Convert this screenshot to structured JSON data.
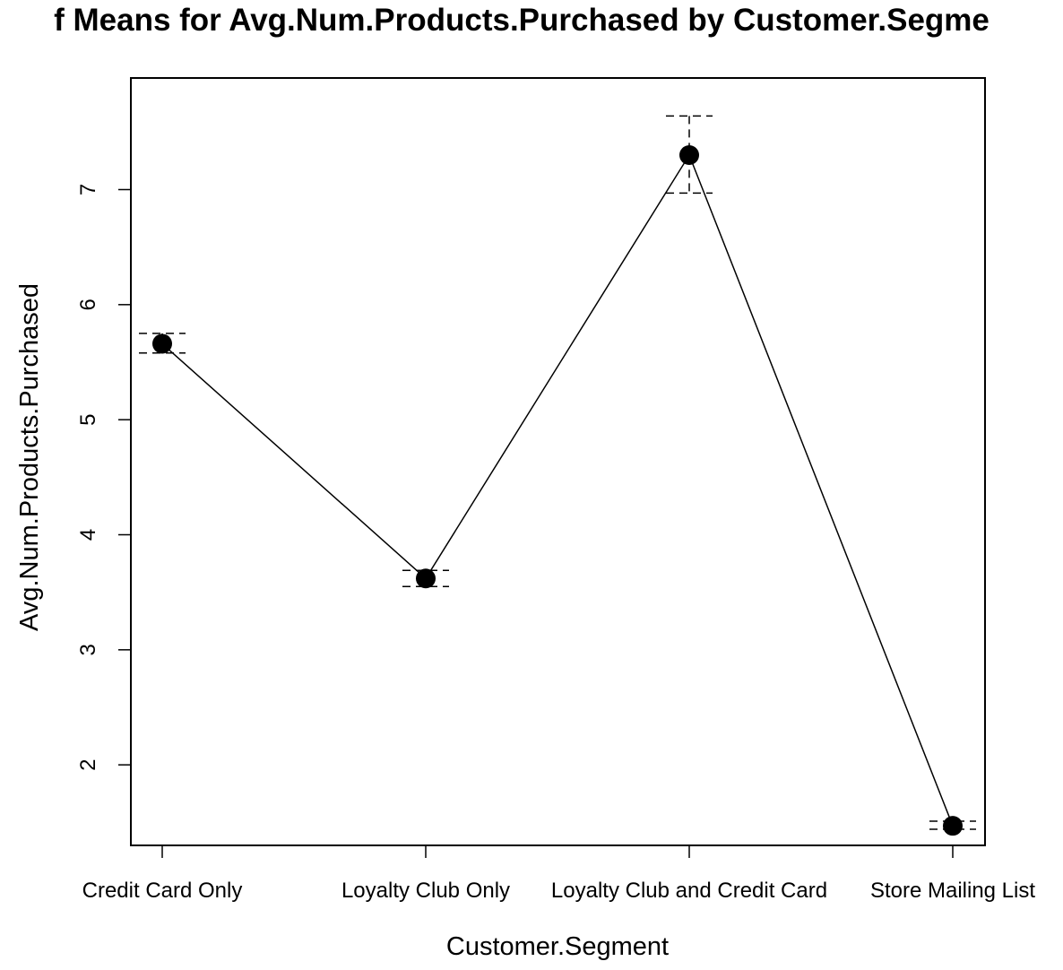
{
  "chart_data": {
    "type": "line",
    "title": "f Means for Avg.Num.Products.Purchased by Customer.Segme",
    "xlabel": "Customer.Segment",
    "ylabel": "Avg.Num.Products.Purchased",
    "categories": [
      "Credit Card Only",
      "Loyalty Club Only",
      "Loyalty Club and Credit Card",
      "Store Mailing List"
    ],
    "means": [
      5.66,
      3.62,
      7.3,
      1.47
    ],
    "ci_lower": [
      5.58,
      3.55,
      6.97,
      1.44
    ],
    "ci_upper": [
      5.75,
      3.69,
      7.64,
      1.51
    ],
    "yticks": [
      2,
      3,
      4,
      5,
      6,
      7
    ],
    "ylim": [
      1.3,
      7.97
    ],
    "grid": false,
    "legend": "none",
    "colors": {
      "line": "#000000",
      "points": "#000000",
      "axis": "#000000"
    }
  }
}
